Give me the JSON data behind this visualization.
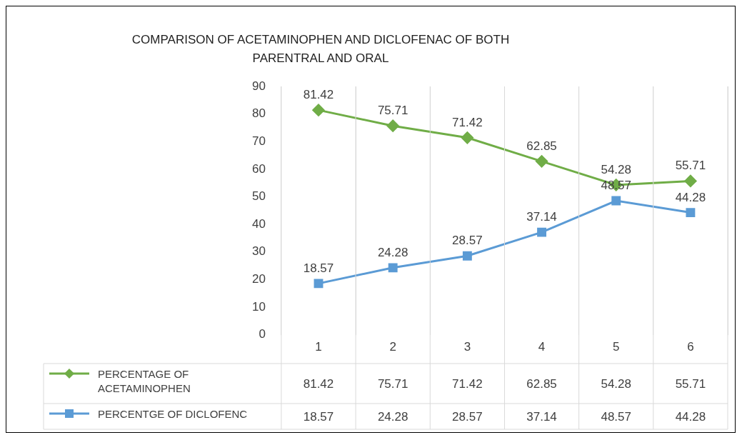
{
  "chart_data": {
    "type": "line",
    "title": "COMPARISON OF ACETAMINOPHEN AND DICLOFENAC OF BOTH PARENTRAL AND ORAL",
    "categories": [
      "1",
      "2",
      "3",
      "4",
      "5",
      "6"
    ],
    "series": [
      {
        "name": "PERCENTAGE OF ACETAMINOPHEN",
        "color": "#70ad47",
        "marker": "diamond",
        "values": [
          81.42,
          75.71,
          71.42,
          62.85,
          54.28,
          55.71
        ]
      },
      {
        "name": "PERCENTGE OF DICLOFENC",
        "color": "#5b9bd5",
        "marker": "square",
        "values": [
          18.57,
          24.28,
          28.57,
          37.14,
          48.57,
          44.28
        ]
      }
    ],
    "ylim": [
      0,
      90
    ],
    "yticks": [
      0,
      10,
      20,
      30,
      40,
      50,
      60,
      70,
      80,
      90
    ],
    "grid": "x",
    "legend": "bottom",
    "data_labels": true,
    "annotations": [
      "81.42",
      "75.71",
      "71.42",
      "62.85",
      "54.28",
      "55.71",
      "18.57",
      "24.28",
      "28.57",
      "37.14",
      "48.57",
      "44.28"
    ]
  }
}
